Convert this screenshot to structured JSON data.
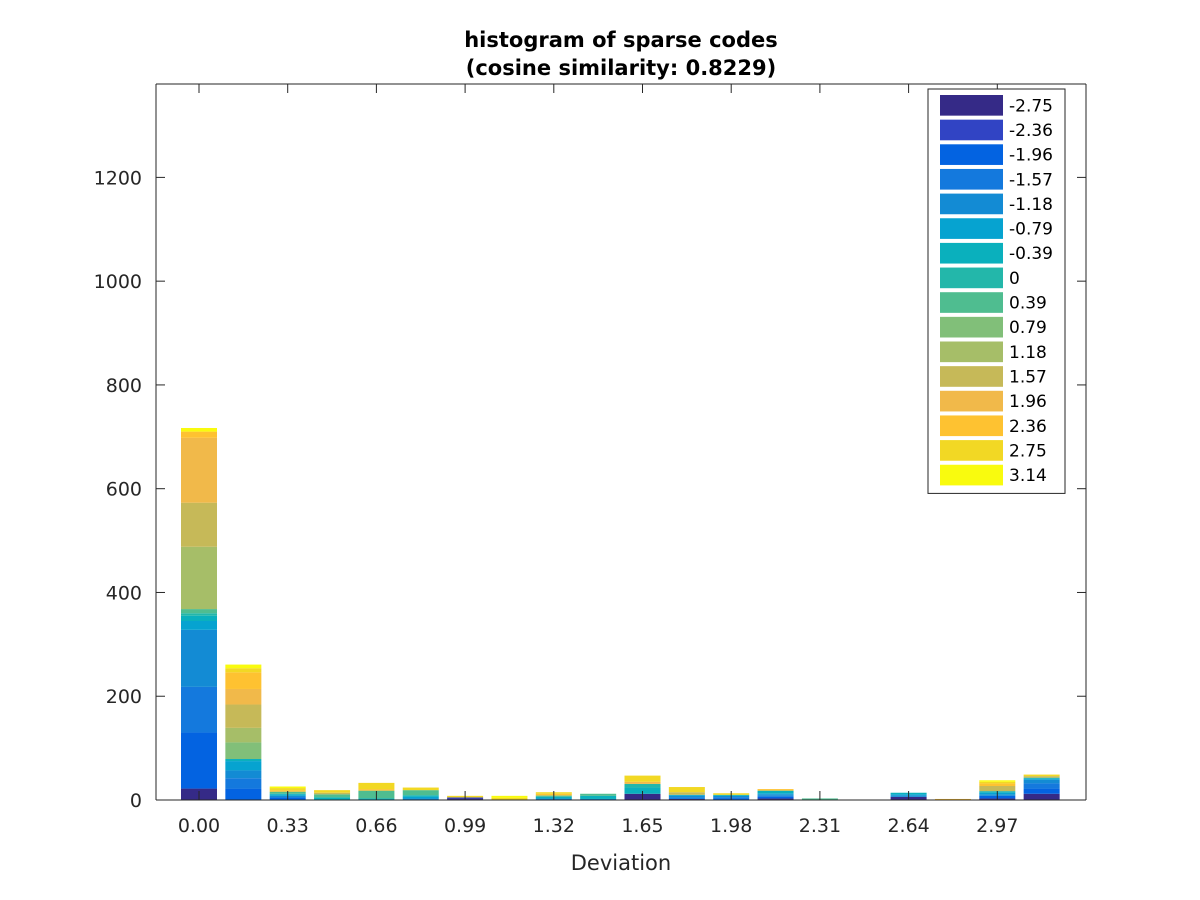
{
  "chart_data": {
    "type": "bar",
    "stacked": true,
    "title": [
      "histogram of sparse codes",
      "(cosine similarity: 0.8229)"
    ],
    "xlabel": "Deviation",
    "ylabel": "",
    "ylim": [
      0,
      1380
    ],
    "yticks": [
      0,
      200,
      400,
      600,
      800,
      1000,
      1200
    ],
    "xtick_labels": [
      "0.00",
      "0.33",
      "0.66",
      "0.99",
      "1.32",
      "1.65",
      "1.98",
      "2.31",
      "2.64",
      "2.97"
    ],
    "xticks_at_bar": [
      0,
      2,
      4,
      6,
      8,
      10,
      12,
      14,
      16,
      18
    ],
    "bar_count": 20,
    "grid": false,
    "legend_position": "top-right",
    "series": [
      {
        "name": "-2.75",
        "color": "#352a87",
        "values": [
          22,
          0,
          0,
          0,
          0,
          0,
          3,
          0,
          0,
          0,
          12,
          2,
          0,
          3,
          0,
          0,
          6,
          0,
          3,
          12
        ]
      },
      {
        "name": "-2.36",
        "color": "#3144c4",
        "values": [
          0,
          0,
          0,
          0,
          0,
          0,
          2,
          0,
          0,
          0,
          0,
          0,
          0,
          0,
          0,
          0,
          0,
          0,
          0,
          0
        ]
      },
      {
        "name": "-1.96",
        "color": "#0363e1",
        "values": [
          108,
          22,
          5,
          0,
          0,
          0,
          0,
          0,
          0,
          0,
          0,
          0,
          3,
          3,
          0,
          0,
          0,
          0,
          5,
          10
        ]
      },
      {
        "name": "-1.57",
        "color": "#1479dd",
        "values": [
          88,
          20,
          0,
          0,
          0,
          0,
          0,
          0,
          0,
          0,
          0,
          3,
          2,
          2,
          0,
          0,
          0,
          0,
          0,
          10
        ]
      },
      {
        "name": "-1.18",
        "color": "#138bd4",
        "values": [
          110,
          15,
          3,
          0,
          0,
          3,
          0,
          0,
          3,
          2,
          0,
          3,
          3,
          3,
          0,
          0,
          3,
          0,
          3,
          7
        ]
      },
      {
        "name": "-0.79",
        "color": "#06a3d0",
        "values": [
          17,
          18,
          2,
          0,
          0,
          3,
          0,
          0,
          0,
          0,
          0,
          2,
          0,
          2,
          0,
          0,
          2,
          0,
          3,
          2
        ]
      },
      {
        "name": "-0.39",
        "color": "#0ab0bd",
        "values": [
          10,
          4,
          2,
          5,
          3,
          3,
          0,
          0,
          4,
          6,
          12,
          0,
          2,
          5,
          0,
          0,
          3,
          0,
          3,
          2
        ]
      },
      {
        "name": "0",
        "color": "#23b7aa",
        "values": [
          5,
          0,
          0,
          0,
          0,
          0,
          0,
          0,
          0,
          0,
          7,
          0,
          0,
          0,
          0,
          0,
          0,
          0,
          0,
          0
        ]
      },
      {
        "name": "0.39",
        "color": "#4fbd90",
        "values": [
          8,
          0,
          4,
          6,
          15,
          10,
          0,
          0,
          0,
          4,
          0,
          0,
          0,
          0,
          3,
          0,
          0,
          0,
          0,
          0
        ]
      },
      {
        "name": "0.79",
        "color": "#81bf79",
        "values": [
          0,
          32,
          0,
          0,
          0,
          0,
          0,
          0,
          2,
          0,
          0,
          0,
          0,
          0,
          0,
          0,
          0,
          0,
          0,
          0
        ]
      },
      {
        "name": "1.18",
        "color": "#a6be68",
        "values": [
          120,
          28,
          0,
          0,
          0,
          0,
          0,
          0,
          0,
          0,
          0,
          0,
          0,
          0,
          0,
          0,
          0,
          0,
          0,
          0
        ]
      },
      {
        "name": "1.57",
        "color": "#c6b958",
        "values": [
          85,
          45,
          0,
          3,
          0,
          0,
          0,
          0,
          0,
          0,
          0,
          5,
          0,
          0,
          0,
          0,
          0,
          0,
          10,
          3
        ]
      },
      {
        "name": "1.96",
        "color": "#f1b94a",
        "values": [
          125,
          30,
          0,
          0,
          0,
          0,
          0,
          0,
          0,
          0,
          4,
          0,
          0,
          0,
          0,
          0,
          0,
          0,
          0,
          0
        ]
      },
      {
        "name": "2.36",
        "color": "#fec231",
        "values": [
          12,
          32,
          3,
          0,
          3,
          0,
          0,
          0,
          3,
          0,
          0,
          0,
          0,
          3,
          0,
          0,
          0,
          2,
          5,
          0
        ]
      },
      {
        "name": "2.75",
        "color": "#f2d824",
        "values": [
          0,
          8,
          4,
          5,
          12,
          5,
          3,
          4,
          3,
          0,
          12,
          10,
          3,
          0,
          0,
          0,
          0,
          0,
          3,
          3
        ]
      },
      {
        "name": "3.14",
        "color": "#f9fb0e",
        "values": [
          7,
          7,
          3,
          0,
          0,
          0,
          0,
          4,
          0,
          0,
          0,
          0,
          0,
          0,
          0,
          0,
          0,
          0,
          3,
          0
        ]
      }
    ]
  }
}
